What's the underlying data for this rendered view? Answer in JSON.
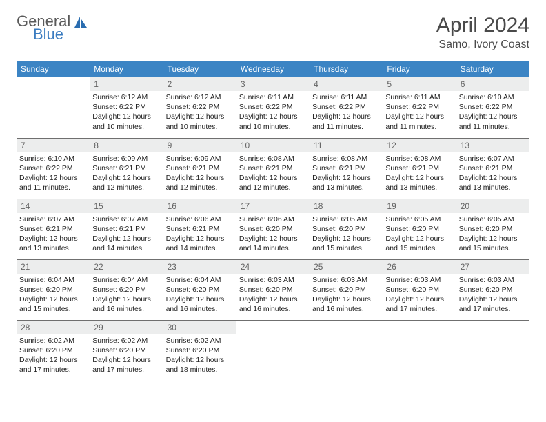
{
  "logo": {
    "general": "General",
    "blue": "Blue"
  },
  "title": "April 2024",
  "location": "Samo, Ivory Coast",
  "colors": {
    "header_bg": "#3b84c4",
    "header_text": "#ffffff",
    "daynum_bg": "#eceded",
    "daynum_text": "#636363",
    "body_text": "#232323",
    "logo_gray": "#5a5a5a",
    "logo_blue": "#3b7cc0",
    "row_border": "#6f6f6f"
  },
  "weekdays": [
    "Sunday",
    "Monday",
    "Tuesday",
    "Wednesday",
    "Thursday",
    "Friday",
    "Saturday"
  ],
  "weeks": [
    [
      null,
      {
        "n": "1",
        "sr": "6:12 AM",
        "ss": "6:22 PM",
        "dl": "12 hours and 10 minutes."
      },
      {
        "n": "2",
        "sr": "6:12 AM",
        "ss": "6:22 PM",
        "dl": "12 hours and 10 minutes."
      },
      {
        "n": "3",
        "sr": "6:11 AM",
        "ss": "6:22 PM",
        "dl": "12 hours and 10 minutes."
      },
      {
        "n": "4",
        "sr": "6:11 AM",
        "ss": "6:22 PM",
        "dl": "12 hours and 11 minutes."
      },
      {
        "n": "5",
        "sr": "6:11 AM",
        "ss": "6:22 PM",
        "dl": "12 hours and 11 minutes."
      },
      {
        "n": "6",
        "sr": "6:10 AM",
        "ss": "6:22 PM",
        "dl": "12 hours and 11 minutes."
      }
    ],
    [
      {
        "n": "7",
        "sr": "6:10 AM",
        "ss": "6:22 PM",
        "dl": "12 hours and 11 minutes."
      },
      {
        "n": "8",
        "sr": "6:09 AM",
        "ss": "6:21 PM",
        "dl": "12 hours and 12 minutes."
      },
      {
        "n": "9",
        "sr": "6:09 AM",
        "ss": "6:21 PM",
        "dl": "12 hours and 12 minutes."
      },
      {
        "n": "10",
        "sr": "6:08 AM",
        "ss": "6:21 PM",
        "dl": "12 hours and 12 minutes."
      },
      {
        "n": "11",
        "sr": "6:08 AM",
        "ss": "6:21 PM",
        "dl": "12 hours and 13 minutes."
      },
      {
        "n": "12",
        "sr": "6:08 AM",
        "ss": "6:21 PM",
        "dl": "12 hours and 13 minutes."
      },
      {
        "n": "13",
        "sr": "6:07 AM",
        "ss": "6:21 PM",
        "dl": "12 hours and 13 minutes."
      }
    ],
    [
      {
        "n": "14",
        "sr": "6:07 AM",
        "ss": "6:21 PM",
        "dl": "12 hours and 13 minutes."
      },
      {
        "n": "15",
        "sr": "6:07 AM",
        "ss": "6:21 PM",
        "dl": "12 hours and 14 minutes."
      },
      {
        "n": "16",
        "sr": "6:06 AM",
        "ss": "6:21 PM",
        "dl": "12 hours and 14 minutes."
      },
      {
        "n": "17",
        "sr": "6:06 AM",
        "ss": "6:20 PM",
        "dl": "12 hours and 14 minutes."
      },
      {
        "n": "18",
        "sr": "6:05 AM",
        "ss": "6:20 PM",
        "dl": "12 hours and 15 minutes."
      },
      {
        "n": "19",
        "sr": "6:05 AM",
        "ss": "6:20 PM",
        "dl": "12 hours and 15 minutes."
      },
      {
        "n": "20",
        "sr": "6:05 AM",
        "ss": "6:20 PM",
        "dl": "12 hours and 15 minutes."
      }
    ],
    [
      {
        "n": "21",
        "sr": "6:04 AM",
        "ss": "6:20 PM",
        "dl": "12 hours and 15 minutes."
      },
      {
        "n": "22",
        "sr": "6:04 AM",
        "ss": "6:20 PM",
        "dl": "12 hours and 16 minutes."
      },
      {
        "n": "23",
        "sr": "6:04 AM",
        "ss": "6:20 PM",
        "dl": "12 hours and 16 minutes."
      },
      {
        "n": "24",
        "sr": "6:03 AM",
        "ss": "6:20 PM",
        "dl": "12 hours and 16 minutes."
      },
      {
        "n": "25",
        "sr": "6:03 AM",
        "ss": "6:20 PM",
        "dl": "12 hours and 16 minutes."
      },
      {
        "n": "26",
        "sr": "6:03 AM",
        "ss": "6:20 PM",
        "dl": "12 hours and 17 minutes."
      },
      {
        "n": "27",
        "sr": "6:03 AM",
        "ss": "6:20 PM",
        "dl": "12 hours and 17 minutes."
      }
    ],
    [
      {
        "n": "28",
        "sr": "6:02 AM",
        "ss": "6:20 PM",
        "dl": "12 hours and 17 minutes."
      },
      {
        "n": "29",
        "sr": "6:02 AM",
        "ss": "6:20 PM",
        "dl": "12 hours and 17 minutes."
      },
      {
        "n": "30",
        "sr": "6:02 AM",
        "ss": "6:20 PM",
        "dl": "12 hours and 18 minutes."
      },
      null,
      null,
      null,
      null
    ]
  ],
  "labels": {
    "sunrise": "Sunrise:",
    "sunset": "Sunset:",
    "daylight": "Daylight:"
  }
}
